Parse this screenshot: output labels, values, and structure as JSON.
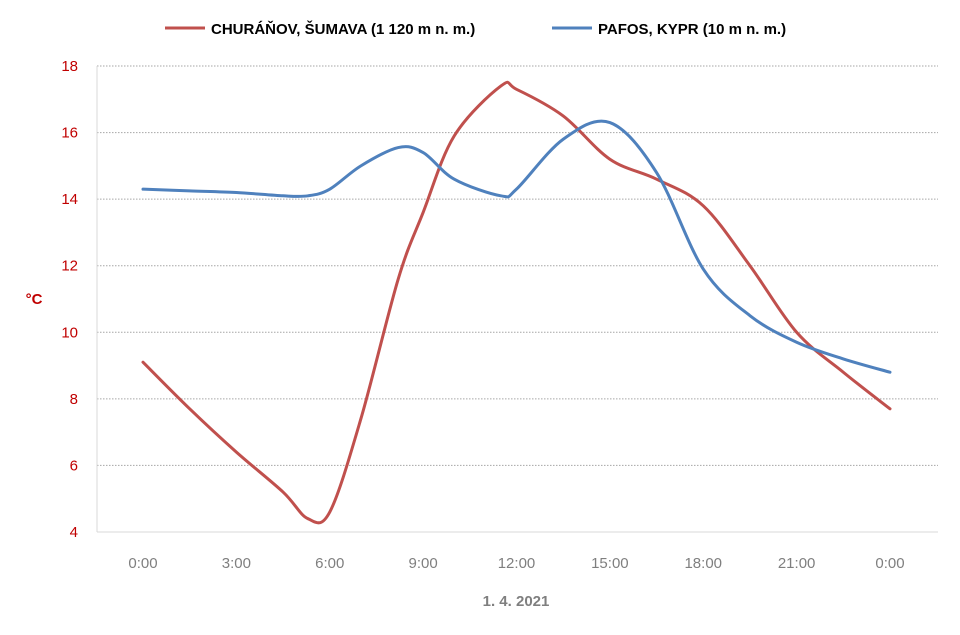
{
  "chart_data": {
    "type": "line",
    "xlabel": "1. 4. 2021",
    "ylabel": "°C",
    "ylim": [
      4,
      18
    ],
    "yticks": [
      4,
      6,
      8,
      10,
      12,
      14,
      16,
      18
    ],
    "x_tick_labels": [
      "0:00",
      "3:00",
      "6:00",
      "9:00",
      "12:00",
      "15:00",
      "18:00",
      "21:00",
      "0:00"
    ],
    "x_hours": [
      0,
      1.5,
      3,
      4.5,
      5.3,
      6,
      7,
      8.2,
      9,
      10,
      11.5,
      12,
      13.5,
      15,
      16.5,
      18,
      19.5,
      21,
      22.5,
      24
    ],
    "grid": "horizontal",
    "legend_position": "top",
    "series": [
      {
        "name": "CHURÁŇOV, ŠUMAVA (1 120 m n. m.)",
        "color": "#c0504d",
        "values": [
          9.1,
          7.7,
          6.4,
          5.2,
          4.4,
          4.6,
          7.4,
          11.6,
          13.6,
          15.9,
          17.4,
          17.3,
          16.5,
          15.2,
          14.6,
          13.8,
          12.0,
          10.0,
          8.8,
          7.7
        ]
      },
      {
        "name": "PAFOS, KYPR (10 m n. m.)",
        "color": "#4f81bd",
        "values": [
          14.3,
          14.25,
          14.2,
          14.1,
          14.1,
          14.3,
          15.0,
          15.55,
          15.4,
          14.6,
          14.1,
          14.3,
          15.8,
          16.3,
          14.8,
          11.9,
          10.5,
          9.7,
          9.2,
          8.8
        ]
      }
    ]
  }
}
